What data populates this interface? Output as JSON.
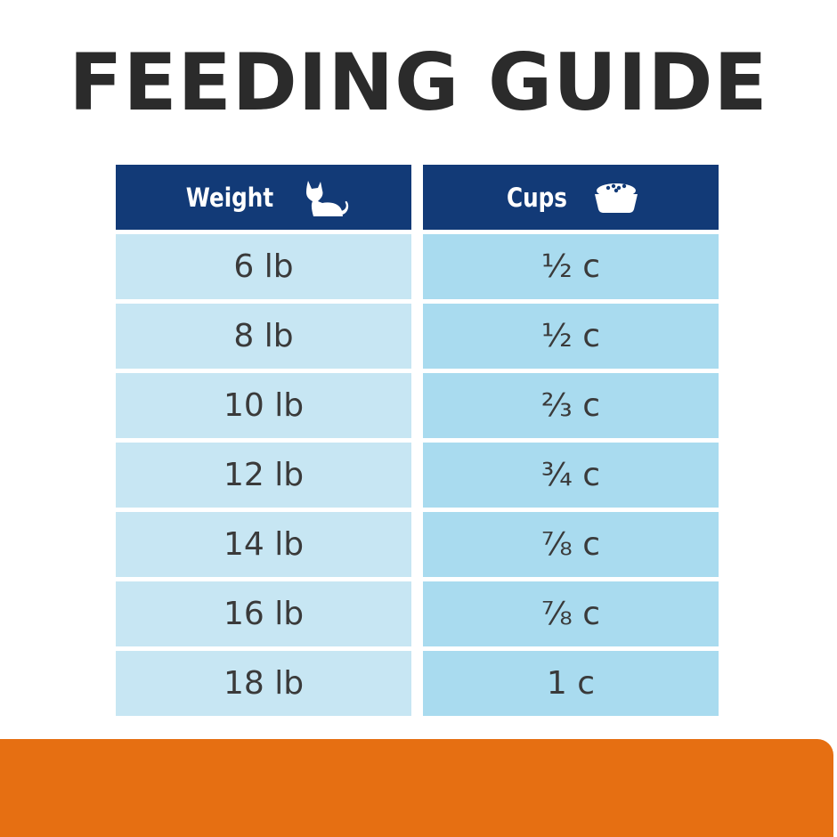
{
  "title": "FEEDING GUIDE",
  "table": {
    "headers": {
      "weight": {
        "label": "Weight",
        "icon": "cat-icon"
      },
      "cups": {
        "label": "Cups",
        "icon": "food-bowl-icon"
      }
    },
    "rows": [
      {
        "weight": "6 lb",
        "cups": "½ c"
      },
      {
        "weight": "8 lb",
        "cups": "½ c"
      },
      {
        "weight": "10 lb",
        "cups": "⅔ c"
      },
      {
        "weight": "12 lb",
        "cups": "¾ c"
      },
      {
        "weight": "14 lb",
        "cups": "⅞ c"
      },
      {
        "weight": "16 lb",
        "cups": "⅞ c"
      },
      {
        "weight": "18 lb",
        "cups": "1 c"
      }
    ]
  },
  "colors": {
    "header_bg": "#123a77",
    "weight_cell_bg": "#c7e6f3",
    "cups_cell_bg": "#a9dbef",
    "footer_bar": "#e66f12",
    "title_text": "#2b2b2b"
  }
}
